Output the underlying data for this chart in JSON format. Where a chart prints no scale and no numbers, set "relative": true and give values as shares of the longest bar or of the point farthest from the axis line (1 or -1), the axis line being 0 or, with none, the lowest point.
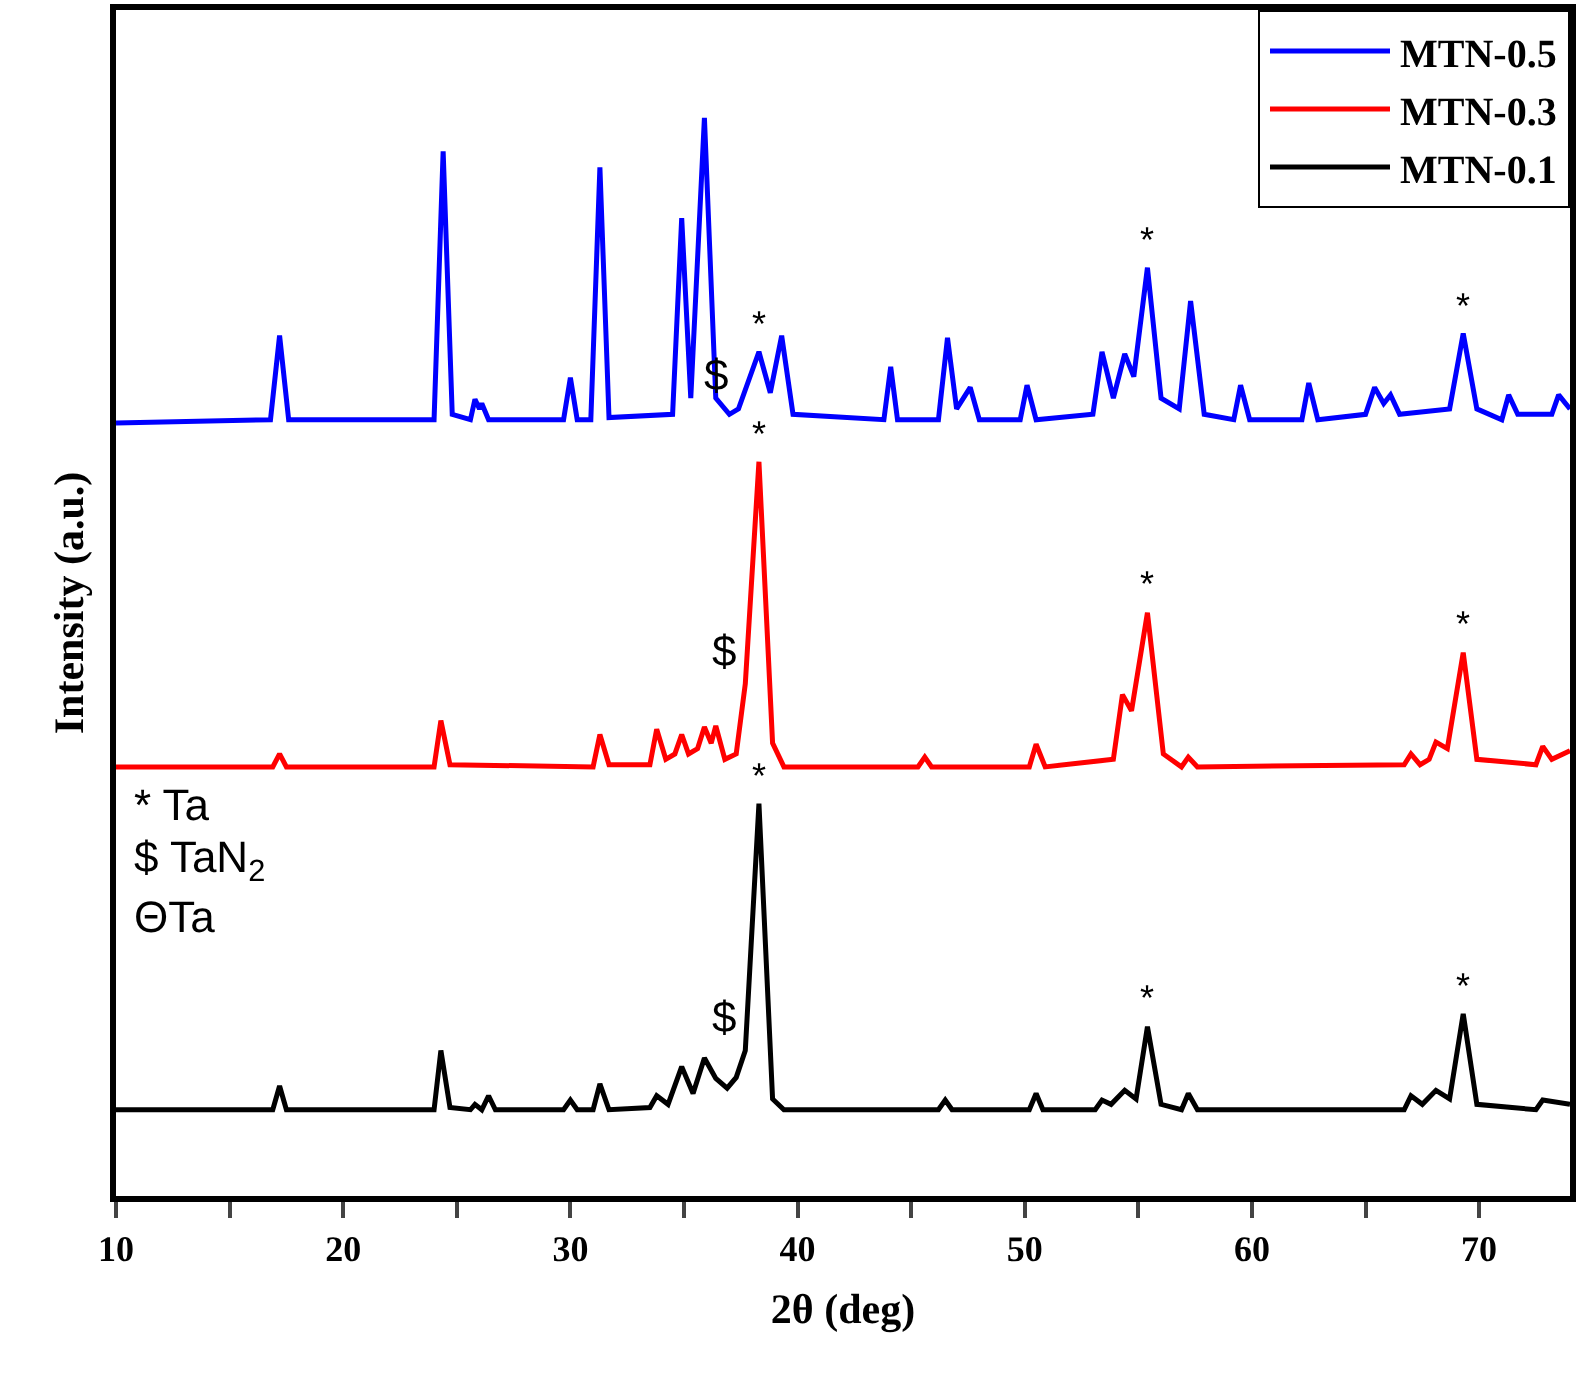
{
  "chart_data": {
    "type": "line",
    "relative": true,
    "xlabel": "2θ (deg)",
    "ylabel": "Intensity (a.u.)",
    "xlim": [
      10,
      74
    ],
    "xticks": [
      10,
      {
        "value": 15,
        "label": null
      },
      20,
      {
        "value": 25,
        "label": null
      },
      30,
      {
        "value": 35,
        "label": null
      },
      40,
      {
        "value": 45,
        "label": null
      },
      50,
      {
        "value": 55,
        "label": null
      },
      60,
      {
        "value": 65,
        "label": null
      },
      70
    ],
    "grid": false,
    "legend": "top right",
    "marker": "none",
    "line_style": "solid",
    "series": [
      {
        "name": "MTN-0.5",
        "color": "#0000ff",
        "x": [
          10,
          16.8,
          17.2,
          17.6,
          24.0,
          24.4,
          24.8,
          25.6,
          25.8,
          26.0,
          26.1,
          26.4,
          29.7,
          30.0,
          30.3,
          30.9,
          31.3,
          31.7,
          34.5,
          34.9,
          35.3,
          35.9,
          36.4,
          37.0,
          37.4,
          38.3,
          38.8,
          39.3,
          39.8,
          43.8,
          44.1,
          44.4,
          46.2,
          46.6,
          47.0,
          47.6,
          48.0,
          49.8,
          50.1,
          50.5,
          53.0,
          53.4,
          53.9,
          54.4,
          54.8,
          55.4,
          56.0,
          56.8,
          57.3,
          57.9,
          59.2,
          59.5,
          59.9,
          62.2,
          62.5,
          62.9,
          65.0,
          65.4,
          65.8,
          66.1,
          66.5,
          68.7,
          69.3,
          69.9,
          71.0,
          71.3,
          71.7,
          73.2,
          73.5,
          74
        ],
        "values": [
          0.717,
          0.72,
          0.798,
          0.72,
          0.72,
          0.969,
          0.725,
          0.72,
          0.739,
          0.73,
          0.735,
          0.72,
          0.72,
          0.759,
          0.72,
          0.72,
          0.954,
          0.722,
          0.725,
          0.907,
          0.74,
          1.0,
          0.74,
          0.725,
          0.73,
          0.783,
          0.745,
          0.798,
          0.725,
          0.72,
          0.769,
          0.72,
          0.72,
          0.796,
          0.73,
          0.75,
          0.72,
          0.72,
          0.752,
          0.72,
          0.725,
          0.783,
          0.74,
          0.781,
          0.76,
          0.861,
          0.74,
          0.73,
          0.83,
          0.725,
          0.72,
          0.752,
          0.72,
          0.72,
          0.754,
          0.72,
          0.725,
          0.75,
          0.735,
          0.743,
          0.725,
          0.73,
          0.8,
          0.73,
          0.72,
          0.743,
          0.725,
          0.725,
          0.743,
          0.73
        ]
      },
      {
        "name": "MTN-0.3",
        "color": "#ff0000",
        "x": [
          10,
          16.9,
          17.2,
          17.5,
          24.0,
          24.3,
          24.7,
          31.0,
          31.3,
          31.7,
          33.5,
          33.8,
          34.2,
          34.6,
          34.9,
          35.2,
          35.6,
          35.9,
          36.2,
          36.4,
          36.8,
          37.3,
          37.7,
          38.3,
          38.9,
          39.4,
          45.3,
          45.6,
          45.9,
          50.2,
          50.5,
          50.9,
          53.9,
          54.3,
          54.7,
          55.4,
          56.1,
          56.9,
          57.2,
          57.6,
          66.7,
          67.0,
          67.4,
          67.8,
          68.1,
          68.6,
          69.3,
          69.9,
          72.5,
          72.8,
          73.2,
          74
        ],
        "values": [
          0.398,
          0.398,
          0.41,
          0.398,
          0.398,
          0.441,
          0.4,
          0.398,
          0.428,
          0.4,
          0.4,
          0.433,
          0.405,
          0.41,
          0.428,
          0.41,
          0.415,
          0.435,
          0.42,
          0.436,
          0.405,
          0.41,
          0.475,
          0.681,
          0.42,
          0.398,
          0.398,
          0.407,
          0.398,
          0.398,
          0.419,
          0.398,
          0.405,
          0.465,
          0.45,
          0.541,
          0.41,
          0.398,
          0.407,
          0.398,
          0.4,
          0.41,
          0.4,
          0.405,
          0.421,
          0.415,
          0.504,
          0.405,
          0.4,
          0.417,
          0.405,
          0.413
        ]
      },
      {
        "name": "MTN-0.1",
        "color": "#000000",
        "x": [
          10,
          16.9,
          17.2,
          17.5,
          24.0,
          24.3,
          24.7,
          25.6,
          25.8,
          26.1,
          26.4,
          26.7,
          29.7,
          30.0,
          30.3,
          31.0,
          31.3,
          31.7,
          33.5,
          33.8,
          34.3,
          34.9,
          35.4,
          35.9,
          36.4,
          36.9,
          37.3,
          37.7,
          38.3,
          38.9,
          39.4,
          46.2,
          46.5,
          46.8,
          50.2,
          50.5,
          50.8,
          53.1,
          53.4,
          53.8,
          54.4,
          54.9,
          55.4,
          56.0,
          56.9,
          57.2,
          57.6,
          66.7,
          67.0,
          67.5,
          68.1,
          68.7,
          69.3,
          69.9,
          72.5,
          72.8,
          74
        ],
        "values": [
          0.08,
          0.08,
          0.102,
          0.08,
          0.08,
          0.135,
          0.082,
          0.08,
          0.085,
          0.08,
          0.093,
          0.08,
          0.08,
          0.089,
          0.08,
          0.08,
          0.104,
          0.08,
          0.082,
          0.093,
          0.085,
          0.12,
          0.095,
          0.128,
          0.109,
          0.1,
          0.11,
          0.135,
          0.364,
          0.09,
          0.08,
          0.08,
          0.089,
          0.08,
          0.08,
          0.095,
          0.08,
          0.08,
          0.089,
          0.085,
          0.098,
          0.09,
          0.157,
          0.085,
          0.08,
          0.095,
          0.08,
          0.08,
          0.093,
          0.085,
          0.098,
          0.09,
          0.169,
          0.085,
          0.08,
          0.089,
          0.085
        ]
      }
    ],
    "annotations": [
      {
        "text": "*",
        "x": 38.3,
        "y": 0.783
      },
      {
        "text": "$",
        "x": 37.4,
        "y": 0.73
      },
      {
        "text": "*",
        "x": 55.4,
        "y": 0.861
      },
      {
        "text": "*",
        "x": 69.3,
        "y": 0.8
      },
      {
        "text": "*",
        "x": 38.3,
        "y": 0.681
      },
      {
        "text": "$",
        "x": 37.7,
        "y": 0.475
      },
      {
        "text": "*",
        "x": 55.4,
        "y": 0.541
      },
      {
        "text": "*",
        "x": 69.3,
        "y": 0.504
      },
      {
        "text": "*",
        "x": 38.3,
        "y": 0.364
      },
      {
        "text": "$",
        "x": 37.7,
        "y": 0.135
      },
      {
        "text": "*",
        "x": 55.4,
        "y": 0.157
      },
      {
        "text": "*",
        "x": 69.3,
        "y": 0.169
      },
      "* Ta",
      "$ TaN$_{2}$",
      "ΘTa"
    ]
  }
}
